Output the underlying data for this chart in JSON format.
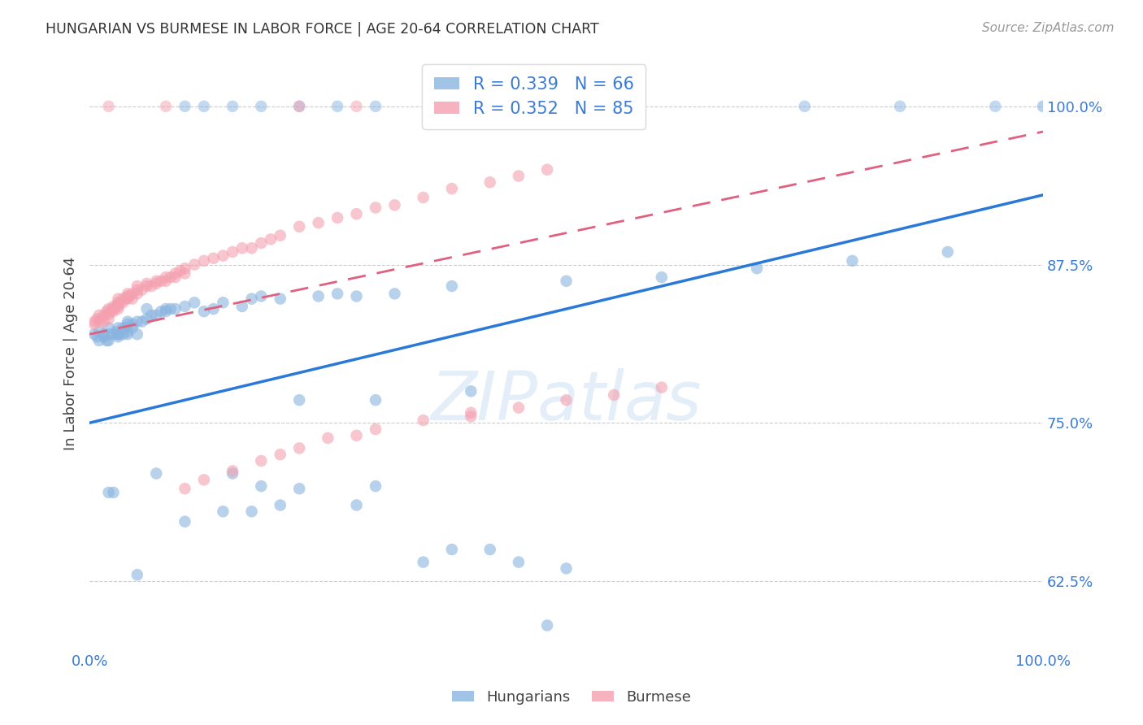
{
  "title": "HUNGARIAN VS BURMESE IN LABOR FORCE | AGE 20-64 CORRELATION CHART",
  "source": "Source: ZipAtlas.com",
  "ylabel": "In Labor Force | Age 20-64",
  "yticks": [
    0.625,
    0.75,
    0.875,
    1.0
  ],
  "ytick_labels": [
    "62.5%",
    "75.0%",
    "87.5%",
    "100.0%"
  ],
  "hungarian_color": "#89b4e0",
  "burmese_color": "#f4a0b0",
  "trend_blue": "#2979d8",
  "trend_pink": "#e06080",
  "hungarian_R": 0.339,
  "hungarian_N": 66,
  "burmese_R": 0.352,
  "burmese_N": 85,
  "blue_trend_x0": 0.0,
  "blue_trend_y0": 0.75,
  "blue_trend_x1": 1.0,
  "blue_trend_y1": 0.93,
  "pink_trend_x0": 0.0,
  "pink_trend_y0": 0.82,
  "pink_trend_x1": 1.0,
  "pink_trend_y1": 0.98,
  "xlim": [
    0.0,
    1.0
  ],
  "ylim": [
    0.57,
    1.04
  ],
  "hun_x": [
    0.005,
    0.008,
    0.01,
    0.01,
    0.015,
    0.015,
    0.018,
    0.02,
    0.02,
    0.02,
    0.025,
    0.025,
    0.028,
    0.03,
    0.03,
    0.03,
    0.03,
    0.035,
    0.035,
    0.038,
    0.04,
    0.04,
    0.04,
    0.04,
    0.045,
    0.045,
    0.05,
    0.05,
    0.055,
    0.06,
    0.06,
    0.065,
    0.07,
    0.07,
    0.075,
    0.08,
    0.08,
    0.085,
    0.09,
    0.1,
    0.1,
    0.11,
    0.12,
    0.13,
    0.14,
    0.15,
    0.16,
    0.17,
    0.18,
    0.2,
    0.22,
    0.24,
    0.26,
    0.28,
    0.3,
    0.32,
    0.35,
    0.38,
    0.4,
    0.45,
    0.5,
    0.6,
    0.7,
    0.8,
    0.9,
    1.0
  ],
  "hun_y": [
    0.82,
    0.818,
    0.815,
    0.822,
    0.818,
    0.82,
    0.815,
    0.82,
    0.825,
    0.815,
    0.82,
    0.695,
    0.822,
    0.82,
    0.825,
    0.818,
    0.82,
    0.825,
    0.82,
    0.825,
    0.822,
    0.828,
    0.82,
    0.83,
    0.825,
    0.828,
    0.83,
    0.82,
    0.83,
    0.832,
    0.84,
    0.835,
    0.835,
    0.71,
    0.838,
    0.84,
    0.838,
    0.84,
    0.84,
    0.842,
    0.672,
    0.845,
    0.838,
    0.84,
    0.845,
    0.71,
    0.842,
    0.848,
    0.85,
    0.848,
    0.768,
    0.85,
    0.852,
    0.85,
    0.768,
    0.852,
    0.64,
    0.858,
    0.775,
    0.64,
    0.862,
    0.865,
    0.872,
    0.878,
    0.885,
    1.0
  ],
  "bur_x": [
    0.005,
    0.005,
    0.008,
    0.01,
    0.01,
    0.012,
    0.015,
    0.015,
    0.018,
    0.02,
    0.02,
    0.02,
    0.022,
    0.025,
    0.025,
    0.025,
    0.028,
    0.03,
    0.03,
    0.03,
    0.03,
    0.032,
    0.035,
    0.035,
    0.038,
    0.04,
    0.04,
    0.04,
    0.042,
    0.045,
    0.045,
    0.05,
    0.05,
    0.05,
    0.055,
    0.06,
    0.06,
    0.065,
    0.07,
    0.07,
    0.075,
    0.08,
    0.08,
    0.085,
    0.09,
    0.09,
    0.095,
    0.1,
    0.1,
    0.11,
    0.12,
    0.13,
    0.14,
    0.15,
    0.16,
    0.17,
    0.18,
    0.19,
    0.2,
    0.22,
    0.24,
    0.26,
    0.28,
    0.3,
    0.32,
    0.35,
    0.38,
    0.42,
    0.45,
    0.48,
    0.1,
    0.12,
    0.15,
    0.18,
    0.2,
    0.22,
    0.25,
    0.28,
    0.3,
    0.35,
    0.4,
    0.45,
    0.5,
    0.55,
    0.6
  ],
  "bur_y": [
    0.83,
    0.828,
    0.832,
    0.83,
    0.835,
    0.832,
    0.835,
    0.83,
    0.838,
    0.832,
    0.836,
    0.84,
    0.838,
    0.84,
    0.842,
    0.838,
    0.842,
    0.845,
    0.84,
    0.848,
    0.842,
    0.845,
    0.848,
    0.845,
    0.848,
    0.85,
    0.848,
    0.852,
    0.85,
    0.852,
    0.848,
    0.855,
    0.852,
    0.858,
    0.855,
    0.858,
    0.86,
    0.858,
    0.862,
    0.86,
    0.862,
    0.865,
    0.862,
    0.865,
    0.868,
    0.865,
    0.87,
    0.868,
    0.872,
    0.875,
    0.878,
    0.88,
    0.882,
    0.885,
    0.888,
    0.888,
    0.892,
    0.895,
    0.898,
    0.905,
    0.908,
    0.912,
    0.915,
    0.92,
    0.922,
    0.928,
    0.935,
    0.94,
    0.945,
    0.95,
    0.698,
    0.705,
    0.712,
    0.72,
    0.725,
    0.73,
    0.738,
    0.74,
    0.745,
    0.752,
    0.758,
    0.762,
    0.768,
    0.772,
    0.778
  ],
  "top_hun_x": [
    0.1,
    0.12,
    0.15,
    0.18,
    0.22,
    0.26,
    0.3,
    0.55,
    0.75,
    0.85,
    0.95
  ],
  "top_hun_y": [
    1.0,
    1.0,
    1.0,
    1.0,
    1.0,
    1.0,
    1.0,
    1.0,
    1.0,
    1.0,
    1.0
  ],
  "top_bur_x": [
    0.02,
    0.08,
    0.22,
    0.28,
    0.36,
    0.42
  ],
  "top_bur_y": [
    1.0,
    1.0,
    1.0,
    1.0,
    1.0,
    1.0
  ],
  "low_hun_x": [
    0.02,
    0.05,
    0.14,
    0.17,
    0.18,
    0.2,
    0.22,
    0.28,
    0.3,
    0.38,
    0.42,
    0.5
  ],
  "low_hun_y": [
    0.695,
    0.63,
    0.68,
    0.68,
    0.7,
    0.685,
    0.698,
    0.685,
    0.7,
    0.65,
    0.65,
    0.635
  ],
  "lone_hun_x": [
    0.48
  ],
  "lone_hun_y": [
    0.59
  ],
  "lone_bur_x": [
    0.4
  ],
  "lone_bur_y": [
    0.755
  ]
}
